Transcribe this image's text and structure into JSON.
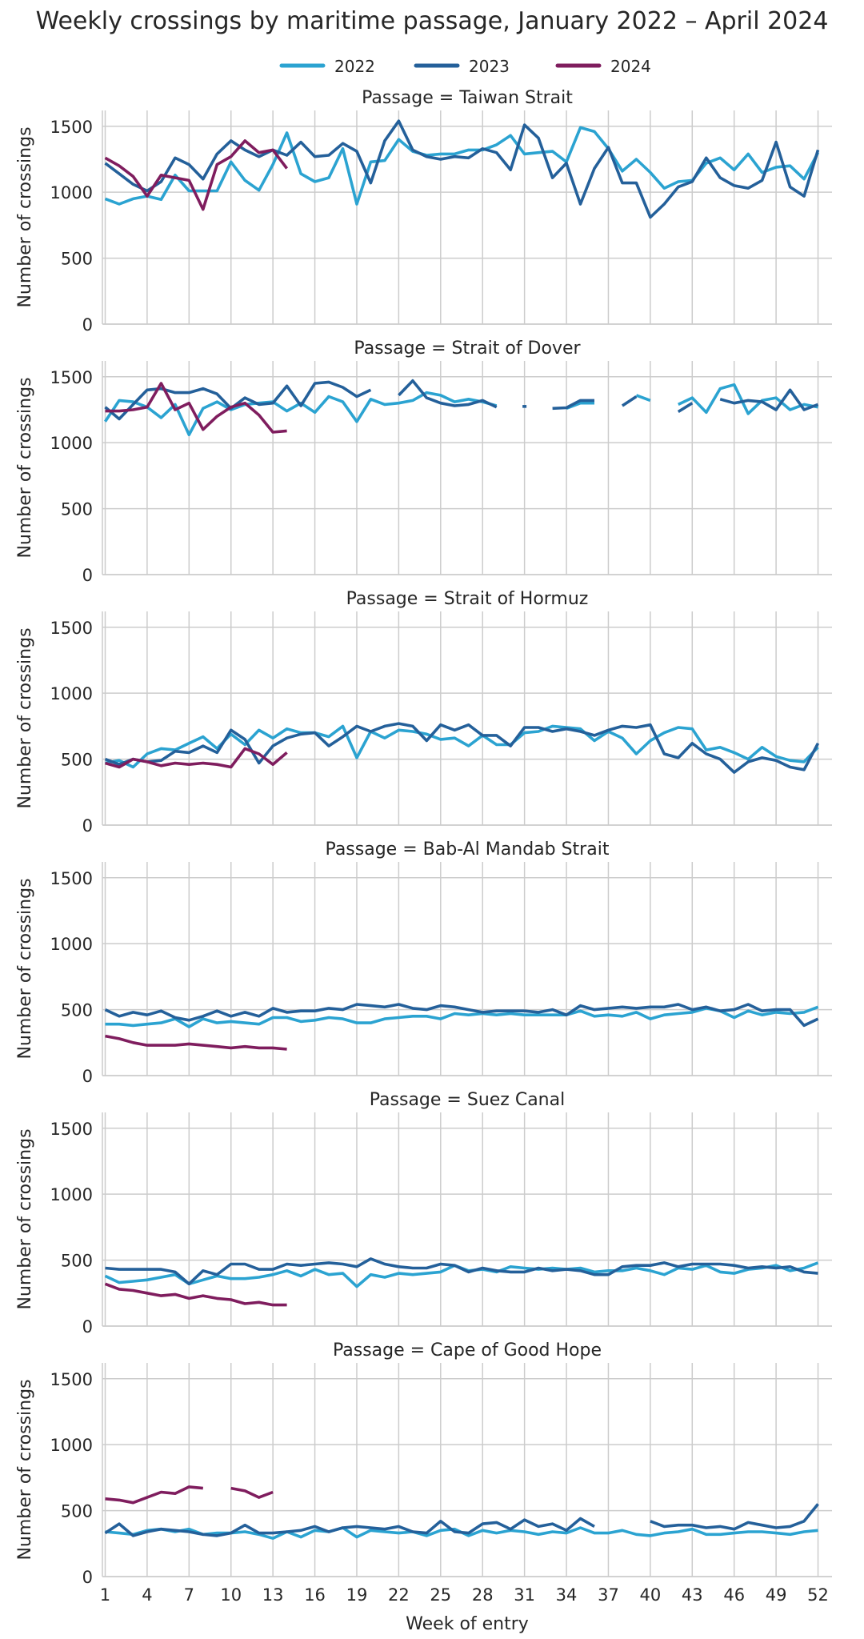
{
  "chart_data": {
    "type": "line",
    "title": "Weekly crossings by maritime passage, January 2022 – April 2024",
    "xlabel": "Week of entry",
    "ylabel": "Number of crossings",
    "x_ticks": [
      1,
      4,
      7,
      10,
      13,
      16,
      19,
      22,
      25,
      28,
      31,
      34,
      37,
      40,
      43,
      46,
      49,
      52
    ],
    "y_ticks": [
      0,
      500,
      1000,
      1500
    ],
    "xlim": [
      0.8,
      53
    ],
    "ylim": [
      0,
      1620
    ],
    "grid": true,
    "legend": {
      "placement": "top-center",
      "entries": [
        {
          "name": "2022",
          "color": "#2ba3d1"
        },
        {
          "name": "2023",
          "color": "#24609a"
        },
        {
          "name": "2024",
          "color": "#7f1d5e"
        }
      ]
    },
    "facets": [
      {
        "title": "Passage = Taiwan Strait",
        "series": [
          {
            "name": "2022",
            "values": [
              950,
              910,
              950,
              970,
              945,
              1130,
              1010,
              1010,
              1010,
              1230,
              1090,
              1015,
              1210,
              1450,
              1140,
              1080,
              1110,
              1330,
              910,
              1230,
              1240,
              1400,
              1310,
              1280,
              1290,
              1290,
              1320,
              1320,
              1360,
              1430,
              1290,
              1300,
              1310,
              1230,
              1490,
              1460,
              1330,
              1160,
              1250,
              1150,
              1030,
              1080,
              1090,
              1220,
              1260,
              1170,
              1290,
              1150,
              1190,
              1200,
              1100,
              1300
            ]
          },
          {
            "name": "2023",
            "values": [
              1220,
              1140,
              1060,
              1010,
              1080,
              1260,
              1210,
              1100,
              1290,
              1390,
              1320,
              1270,
              1320,
              1280,
              1380,
              1270,
              1280,
              1370,
              1310,
              1070,
              1390,
              1540,
              1320,
              1270,
              1250,
              1270,
              1260,
              1330,
              1300,
              1170,
              1510,
              1410,
              1110,
              1220,
              910,
              1180,
              1340,
              1070,
              1070,
              810,
              910,
              1040,
              1080,
              1260,
              1110,
              1050,
              1030,
              1090,
              1380,
              1040,
              970,
              1320
            ]
          },
          {
            "name": "2024",
            "values": [
              1260,
              1200,
              1120,
              970,
              1130,
              1110,
              1090,
              870,
              1210,
              1270,
              1390,
              1300,
              1320,
              1180
            ]
          }
        ]
      },
      {
        "title": "Passage = Strait of Dover",
        "series": [
          {
            "name": "2022",
            "values": [
              1160,
              1320,
              1310,
              1270,
              1190,
              1290,
              1060,
              1260,
              1310,
              1250,
              1290,
              1300,
              1310,
              1240,
              1300,
              1230,
              1350,
              1310,
              1160,
              1330,
              1290,
              1300,
              1320,
              1380,
              1360,
              1310,
              1330,
              1310,
              1280,
              null,
              null,
              null,
              null,
              1260,
              1300,
              1300,
              null,
              null,
              1360,
              1320,
              null,
              1290,
              1340,
              1230,
              1410,
              1440,
              1220,
              1320,
              1340,
              1250,
              1290,
              1270
            ]
          },
          {
            "name": "2023",
            "values": [
              1270,
              1180,
              1290,
              1400,
              1410,
              1380,
              1380,
              1410,
              1370,
              1260,
              1340,
              1290,
              1300,
              1430,
              1280,
              1450,
              1460,
              1420,
              1350,
              1400,
              null,
              1360,
              1470,
              1340,
              1300,
              1280,
              1290,
              1320,
              1270,
              null,
              1275,
              null,
              1260,
              1265,
              1320,
              1320,
              null,
              1280,
              1350,
              null,
              null,
              1235,
              1300,
              null,
              1330,
              1300,
              1320,
              1310,
              1250,
              1400,
              1250,
              1290
            ]
          },
          {
            "name": "2024",
            "values": [
              1240,
              1240,
              1250,
              1270,
              1450,
              1250,
              1300,
              1100,
              1200,
              1270,
              1300,
              1210,
              1080,
              1090
            ]
          }
        ]
      },
      {
        "title": "Passage = Strait of Hormuz",
        "series": [
          {
            "name": "2022",
            "values": [
              470,
              490,
              440,
              540,
              580,
              570,
              620,
              670,
              580,
              690,
              610,
              720,
              660,
              730,
              700,
              700,
              670,
              750,
              510,
              710,
              660,
              720,
              710,
              690,
              650,
              660,
              600,
              680,
              610,
              610,
              700,
              710,
              750,
              740,
              730,
              640,
              710,
              660,
              540,
              640,
              700,
              740,
              730,
              570,
              590,
              550,
              500,
              590,
              520,
              490,
              480,
              590
            ]
          },
          {
            "name": "2023",
            "values": [
              500,
              460,
              500,
              480,
              490,
              560,
              550,
              600,
              550,
              720,
              650,
              470,
              600,
              660,
              690,
              700,
              600,
              670,
              750,
              710,
              750,
              770,
              750,
              640,
              760,
              720,
              760,
              680,
              680,
              600,
              740,
              740,
              710,
              730,
              710,
              680,
              720,
              750,
              740,
              760,
              540,
              510,
              620,
              540,
              500,
              400,
              480,
              510,
              490,
              440,
              420,
              620
            ]
          },
          {
            "name": "2024",
            "values": [
              470,
              440,
              500,
              480,
              450,
              470,
              460,
              470,
              460,
              440,
              580,
              540,
              460,
              550
            ]
          }
        ]
      },
      {
        "title": "Passage = Bab-Al Mandab Strait",
        "series": [
          {
            "name": "2022",
            "values": [
              390,
              390,
              380,
              390,
              400,
              430,
              370,
              430,
              400,
              410,
              400,
              390,
              440,
              440,
              410,
              420,
              440,
              430,
              400,
              400,
              430,
              440,
              450,
              450,
              430,
              470,
              460,
              470,
              460,
              470,
              460,
              460,
              460,
              460,
              490,
              450,
              460,
              450,
              480,
              430,
              460,
              470,
              480,
              510,
              490,
              440,
              490,
              460,
              480,
              470,
              480,
              520
            ]
          },
          {
            "name": "2023",
            "values": [
              500,
              450,
              480,
              460,
              490,
              440,
              420,
              450,
              490,
              450,
              480,
              450,
              510,
              480,
              490,
              490,
              510,
              500,
              540,
              530,
              520,
              540,
              510,
              500,
              530,
              520,
              500,
              480,
              490,
              490,
              490,
              480,
              500,
              460,
              530,
              500,
              510,
              520,
              510,
              520,
              520,
              540,
              500,
              520,
              490,
              500,
              540,
              490,
              500,
              500,
              380,
              430
            ]
          },
          {
            "name": "2024",
            "values": [
              300,
              280,
              250,
              230,
              230,
              230,
              240,
              230,
              220,
              210,
              220,
              210,
              210,
              200
            ]
          }
        ]
      },
      {
        "title": "Passage = Suez Canal",
        "series": [
          {
            "name": "2022",
            "values": [
              380,
              330,
              340,
              350,
              370,
              390,
              320,
              350,
              380,
              360,
              360,
              370,
              390,
              420,
              380,
              430,
              390,
              400,
              300,
              390,
              370,
              400,
              390,
              400,
              410,
              460,
              420,
              430,
              410,
              450,
              440,
              430,
              440,
              430,
              440,
              410,
              420,
              420,
              440,
              420,
              390,
              440,
              430,
              460,
              410,
              400,
              430,
              440,
              460,
              420,
              440,
              480
            ]
          },
          {
            "name": "2023",
            "values": [
              440,
              430,
              430,
              430,
              430,
              410,
              320,
              420,
              390,
              470,
              470,
              430,
              430,
              470,
              460,
              470,
              480,
              470,
              450,
              510,
              470,
              450,
              440,
              440,
              470,
              460,
              410,
              440,
              420,
              410,
              410,
              440,
              420,
              430,
              420,
              390,
              390,
              450,
              460,
              460,
              480,
              450,
              470,
              470,
              470,
              460,
              440,
              450,
              440,
              450,
              410,
              400
            ]
          },
          {
            "name": "2024",
            "values": [
              320,
              280,
              270,
              250,
              230,
              240,
              210,
              230,
              210,
              200,
              170,
              180,
              160,
              160
            ]
          }
        ]
      },
      {
        "title": "Passage = Cape of Good Hope",
        "series": [
          {
            "name": "2022",
            "values": [
              340,
              330,
              320,
              350,
              360,
              340,
              360,
              320,
              330,
              330,
              340,
              320,
              290,
              340,
              300,
              350,
              340,
              370,
              300,
              350,
              340,
              330,
              340,
              310,
              350,
              360,
              310,
              350,
              330,
              350,
              340,
              320,
              340,
              330,
              370,
              330,
              330,
              350,
              320,
              310,
              330,
              340,
              360,
              320,
              320,
              330,
              340,
              340,
              330,
              320,
              340,
              350
            ]
          },
          {
            "name": "2023",
            "values": [
              330,
              400,
              310,
              340,
              360,
              350,
              340,
              320,
              310,
              330,
              390,
              330,
              330,
              340,
              350,
              380,
              340,
              370,
              380,
              370,
              360,
              380,
              340,
              330,
              420,
              340,
              330,
              400,
              410,
              360,
              430,
              380,
              400,
              350,
              440,
              380,
              null,
              null,
              null,
              420,
              380,
              390,
              390,
              370,
              380,
              360,
              410,
              390,
              370,
              380,
              420,
              550
            ]
          },
          {
            "name": "2024",
            "values": [
              590,
              580,
              560,
              600,
              640,
              630,
              680,
              670,
              null,
              670,
              650,
              600,
              640
            ]
          }
        ]
      }
    ]
  }
}
